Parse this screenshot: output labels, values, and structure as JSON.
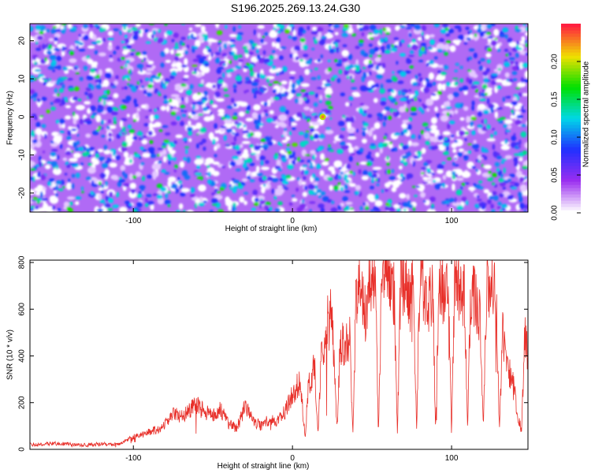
{
  "title": "S196.2025.269.13.24.G30",
  "chart_data": [
    {
      "type": "heatmap",
      "xlabel": "Height of straight line (km)",
      "ylabel": "Frequency (Hz)",
      "xlim": [
        -165,
        148
      ],
      "ylim": [
        -25,
        24.5
      ],
      "xticks": [
        -100,
        0,
        100
      ],
      "yticks": [
        -20,
        -10,
        0,
        10,
        20
      ],
      "colorbar": {
        "label": "Normalized spectral amplitude",
        "range": [
          0,
          0.25
        ],
        "ticks": [
          "0.00",
          "0.05",
          "0.10",
          "0.15",
          "0.20"
        ],
        "colors": [
          "#ffffff",
          "#9a2df0",
          "#2030ff",
          "#00d8e8",
          "#00e000",
          "#f0e000",
          "#ff2040"
        ]
      },
      "peak": {
        "x": 19,
        "y": 0,
        "value": 0.23
      }
    },
    {
      "type": "line",
      "xlabel": "Height of straight line (km)",
      "ylabel": "SNR (10 * v/v)",
      "xlim": [
        -165,
        148
      ],
      "ylim": [
        0,
        810
      ],
      "xticks": [
        -100,
        0,
        100
      ],
      "yticks": [
        0,
        200,
        400,
        600,
        800
      ],
      "color": "#e8302a",
      "x": [
        -165,
        -150,
        -140,
        -130,
        -120,
        -110,
        -105,
        -100,
        -95,
        -90,
        -85,
        -80,
        -75,
        -70,
        -65,
        -60,
        -55,
        -50,
        -45,
        -40,
        -35,
        -30,
        -25,
        -20,
        -15,
        -10,
        -5,
        0,
        5,
        8,
        10,
        12,
        14,
        16,
        18,
        20,
        22,
        24,
        26,
        28,
        30,
        32,
        34,
        36,
        38,
        40,
        42,
        44,
        46,
        48,
        50,
        52,
        54,
        56,
        58,
        60,
        62,
        64,
        66,
        68,
        70,
        72,
        74,
        76,
        78,
        80,
        82,
        84,
        86,
        88,
        90,
        92,
        94,
        96,
        98,
        100,
        102,
        104,
        106,
        108,
        110,
        112,
        114,
        116,
        118,
        120,
        122,
        124,
        126,
        128,
        130,
        132,
        134,
        136,
        138,
        140,
        142,
        144,
        146,
        148
      ],
      "y": [
        20,
        25,
        22,
        18,
        24,
        20,
        35,
        55,
        60,
        75,
        85,
        110,
        150,
        140,
        170,
        190,
        160,
        140,
        170,
        110,
        90,
        180,
        130,
        100,
        130,
        110,
        160,
        230,
        300,
        40,
        290,
        320,
        350,
        60,
        400,
        420,
        560,
        600,
        420,
        80,
        460,
        440,
        480,
        470,
        60,
        680,
        700,
        620,
        580,
        720,
        760,
        730,
        80,
        700,
        740,
        770,
        730,
        660,
        70,
        740,
        720,
        690,
        640,
        680,
        100,
        740,
        700,
        660,
        630,
        700,
        80,
        720,
        690,
        650,
        680,
        60,
        760,
        730,
        640,
        700,
        90,
        680,
        660,
        610,
        560,
        90,
        720,
        700,
        690,
        700,
        80,
        500,
        420,
        350,
        300,
        220,
        130,
        80,
        500,
        420
      ]
    }
  ]
}
